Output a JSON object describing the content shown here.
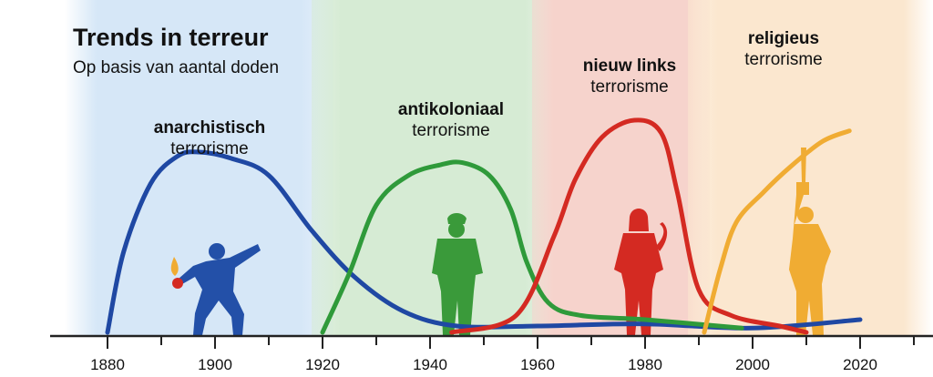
{
  "chart_data": {
    "type": "line",
    "title": "Trends in terreur",
    "subtitle": "Op basis van aantal doden",
    "xlim": [
      1874,
      2034
    ],
    "x_ticks": [
      1880,
      1900,
      1920,
      1940,
      1960,
      1980,
      2000,
      2020
    ],
    "x_tick_labels": [
      "1880",
      "1900",
      "1920",
      "1940",
      "1960",
      "1980",
      "2000",
      "2020"
    ],
    "ylim": [
      0,
      100
    ],
    "waves": [
      {
        "label_bold": "anarchistisch",
        "label_normal": "terrorisme",
        "era": [
          1874,
          1920
        ],
        "era_color": "#d6e7f7",
        "color": "#1f48a3"
      },
      {
        "label_bold": "antikoloniaal",
        "label_normal": "terrorisme",
        "era": [
          1920,
          1961
        ],
        "era_color": "#d6ebd4",
        "color": "#2f9a3a"
      },
      {
        "label_bold": "nieuw links",
        "label_normal": "terrorisme",
        "era": [
          1961,
          1990
        ],
        "era_color": "#f6d3cc",
        "color": "#d42a22"
      },
      {
        "label_bold": "religieus",
        "label_normal": "terrorisme",
        "era": [
          1990,
          2034
        ],
        "era_color": "#fbe7cf",
        "color": "#f0ac33"
      }
    ],
    "series": [
      {
        "x": [
          1880,
          1883,
          1888,
          1893,
          1897,
          1903,
          1910,
          1918,
          1926,
          1935,
          1945,
          1960,
          1980,
          2000,
          2020
        ],
        "y": [
          0,
          38,
          70,
          83,
          85,
          82,
          74,
          48,
          26,
          10,
          3,
          3,
          4,
          2,
          6
        ]
      },
      {
        "x": [
          1920,
          1925,
          1930,
          1936,
          1942,
          1946,
          1951,
          1955,
          1958,
          1962,
          1968,
          1980,
          1998
        ],
        "y": [
          0,
          28,
          60,
          74,
          79,
          80,
          74,
          58,
          33,
          14,
          8,
          6,
          2
        ]
      },
      {
        "x": [
          1944,
          1956,
          1963,
          1967,
          1972,
          1978,
          1983,
          1986,
          1990,
          1996,
          2005,
          2010
        ],
        "y": [
          0,
          8,
          45,
          72,
          92,
          100,
          94,
          66,
          20,
          8,
          3,
          0
        ]
      },
      {
        "x": [
          1991,
          1994,
          1997,
          2002,
          2007,
          2013,
          2018
        ],
        "y": [
          0,
          30,
          52,
          66,
          78,
          90,
          95
        ]
      }
    ]
  }
}
